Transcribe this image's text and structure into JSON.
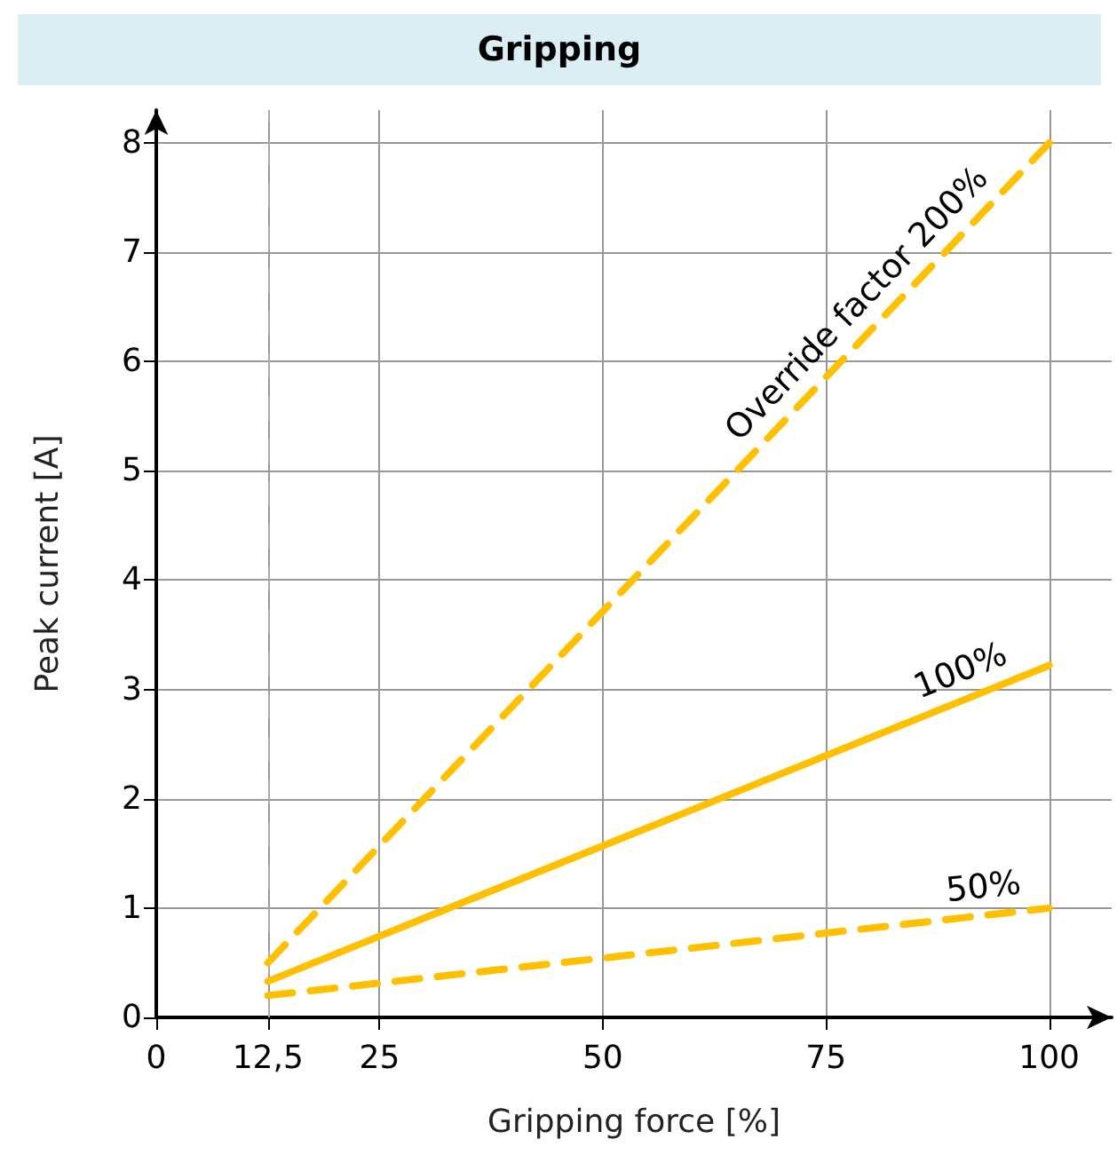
{
  "chart_data": {
    "type": "line",
    "title": "Gripping",
    "xlabel": "Gripping force [%]",
    "ylabel": "Peak current [A]",
    "xlim": [
      0,
      107
    ],
    "ylim": [
      0,
      8.3
    ],
    "xticks": [
      0,
      {
        "value": 12.5,
        "label": "12,5"
      },
      25,
      50,
      75,
      100
    ],
    "yticks": [
      0,
      1,
      2,
      3,
      4,
      5,
      6,
      7,
      8
    ],
    "grid": true,
    "legend": false,
    "marker": "none",
    "x": [
      12.5,
      100
    ],
    "series": [
      {
        "name": "Override factor 200%",
        "color": "#ffc000",
        "line_style": "dashed",
        "values": [
          0.5,
          8
        ]
      },
      {
        "name": "100%",
        "color": "#ffc000",
        "line_style": "solid",
        "values": [
          0.33,
          3.22
        ]
      },
      {
        "name": "50%",
        "color": "#ffc000",
        "line_style": "dashed",
        "values": [
          0.2,
          1.0
        ]
      }
    ],
    "ref_lines": [
      {
        "axis": "x",
        "value": 12.5,
        "label": null,
        "color": "#aaaaaa",
        "line_style": "dashed"
      }
    ]
  }
}
